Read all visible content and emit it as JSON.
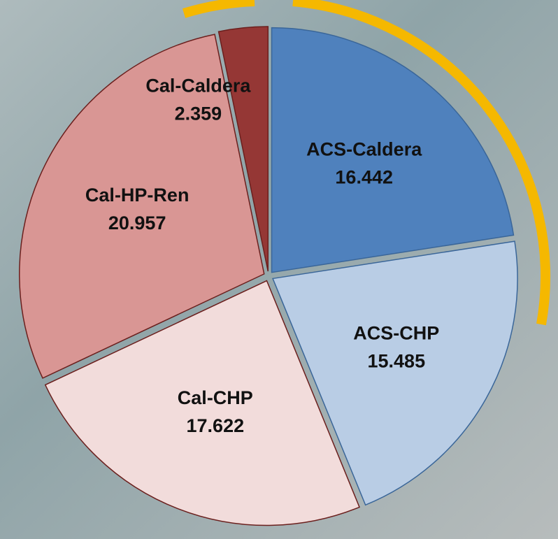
{
  "chart_data": {
    "type": "pie",
    "categories": [
      "ACS-Caldera",
      "ACS-CHP",
      "Cal-CHP",
      "Cal-HP-Ren",
      "Cal-Caldera"
    ],
    "values": [
      16.442,
      15.485,
      17.622,
      20.957,
      2.359
    ],
    "colors": [
      "#4f81bd",
      "#b9cde5",
      "#f2dcdb",
      "#d99694",
      "#953735"
    ]
  }
}
